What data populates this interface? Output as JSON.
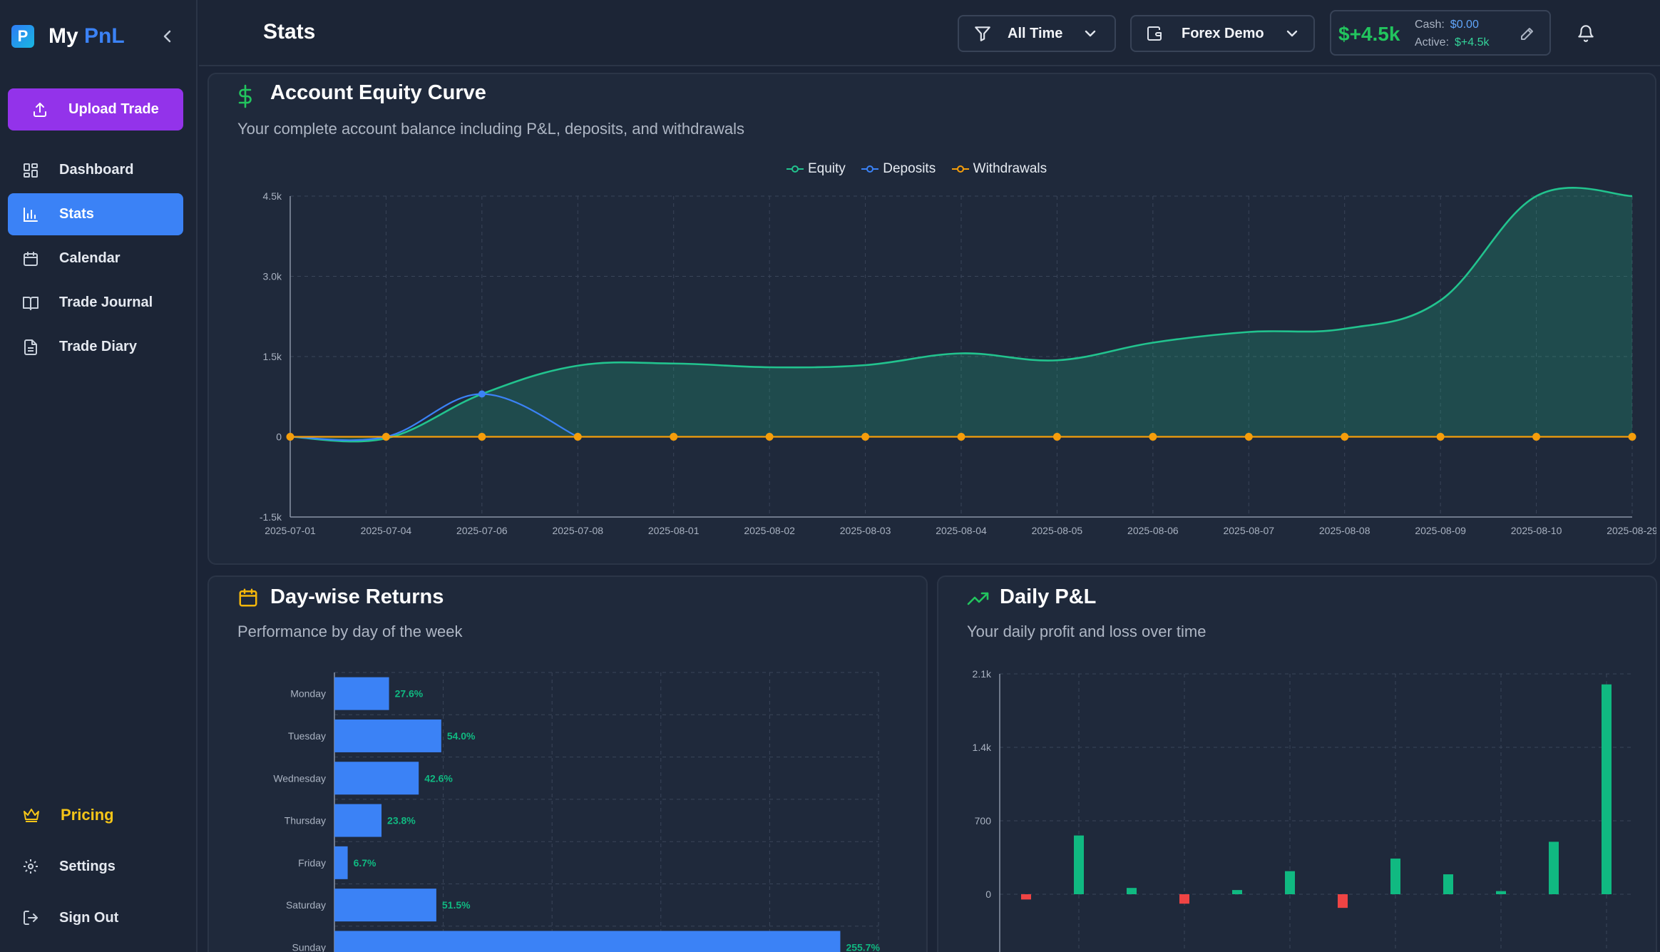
{
  "sidebar": {
    "brand_logo": "P",
    "brand_name_1": "My",
    "brand_name_2": "PnL",
    "upload_label": "Upload Trade",
    "items": [
      {
        "label": "Dashboard",
        "icon": "dashboard-icon"
      },
      {
        "label": "Stats",
        "icon": "bar-chart-icon",
        "active": true
      },
      {
        "label": "Calendar",
        "icon": "calendar-icon"
      },
      {
        "label": "Trade Journal",
        "icon": "book-icon"
      },
      {
        "label": "Trade Diary",
        "icon": "document-icon"
      }
    ],
    "pricing": "Pricing",
    "settings": "Settings",
    "signout": "Sign Out"
  },
  "header": {
    "title": "Stats",
    "filter_label": "All Time",
    "account_label": "Forex Demo",
    "balance_main": "$+4.5k",
    "cash_label": "Cash:",
    "cash_value": "$0.00",
    "active_label": "Active:",
    "active_value": "$+4.5k"
  },
  "colors": {
    "equity": "#22c38e",
    "deposits": "#3b82f6",
    "withdrawals": "#f59e0b",
    "accent": "#3b82f6",
    "upload": "#9333ea",
    "positive": "#10b981",
    "negative": "#ef4444"
  },
  "equity_card": {
    "title": "Account Equity Curve",
    "subtitle": "Your complete account balance including P&L, deposits, and withdrawals",
    "legend": [
      "Equity",
      "Deposits",
      "Withdrawals"
    ]
  },
  "daywise_card": {
    "title": "Day-wise Returns",
    "subtitle": "Performance by day of the week"
  },
  "daily_card": {
    "title": "Daily P&L",
    "subtitle": "Your daily profit and loss over time"
  },
  "chart_data": [
    {
      "type": "area",
      "title": "Account Equity Curve",
      "categories": [
        "2025-07-01",
        "2025-07-04",
        "2025-07-06",
        "2025-07-08",
        "2025-08-01",
        "2025-08-02",
        "2025-08-03",
        "2025-08-04",
        "2025-08-05",
        "2025-08-06",
        "2025-08-07",
        "2025-08-08",
        "2025-08-09",
        "2025-08-10",
        "2025-08-29"
      ],
      "y_ticks": [
        "4.5k",
        "3.0k",
        "1.5k",
        "0",
        "-1.5k"
      ],
      "ylim": [
        -1500,
        4500
      ],
      "grid": true,
      "legend_position": "top-center",
      "series": [
        {
          "name": "Equity",
          "values": [
            0,
            -30,
            800,
            1330,
            1370,
            1300,
            1340,
            1560,
            1430,
            1760,
            1960,
            2020,
            2550,
            4500,
            4500
          ]
        },
        {
          "name": "Deposits",
          "values": [
            0,
            0,
            800,
            0,
            null,
            null,
            null,
            null,
            null,
            null,
            null,
            null,
            null,
            null,
            null
          ]
        },
        {
          "name": "Withdrawals",
          "values": [
            0,
            0,
            0,
            0,
            0,
            0,
            0,
            0,
            0,
            0,
            0,
            0,
            0,
            0,
            0
          ]
        }
      ]
    },
    {
      "type": "bar",
      "orientation": "horizontal",
      "title": "Day-wise Returns",
      "categories": [
        "Monday",
        "Tuesday",
        "Wednesday",
        "Thursday",
        "Friday",
        "Saturday",
        "Sunday"
      ],
      "values": [
        27.6,
        54.0,
        42.6,
        23.8,
        6.7,
        51.5,
        255.7
      ],
      "labels": [
        "27.6%",
        "54.0%",
        "42.6%",
        "23.8%",
        "6.7%",
        "51.5%",
        "255.7%"
      ],
      "xlim": [
        0,
        275
      ],
      "grid": true
    },
    {
      "type": "bar",
      "title": "Daily P&L",
      "y_ticks": [
        "2.1k",
        "1.4k",
        "700",
        "0"
      ],
      "ylim": [
        -550,
        2100
      ],
      "values": [
        -50,
        560,
        60,
        -90,
        40,
        220,
        -130,
        340,
        190,
        30,
        500,
        2000
      ],
      "grid": true
    }
  ]
}
